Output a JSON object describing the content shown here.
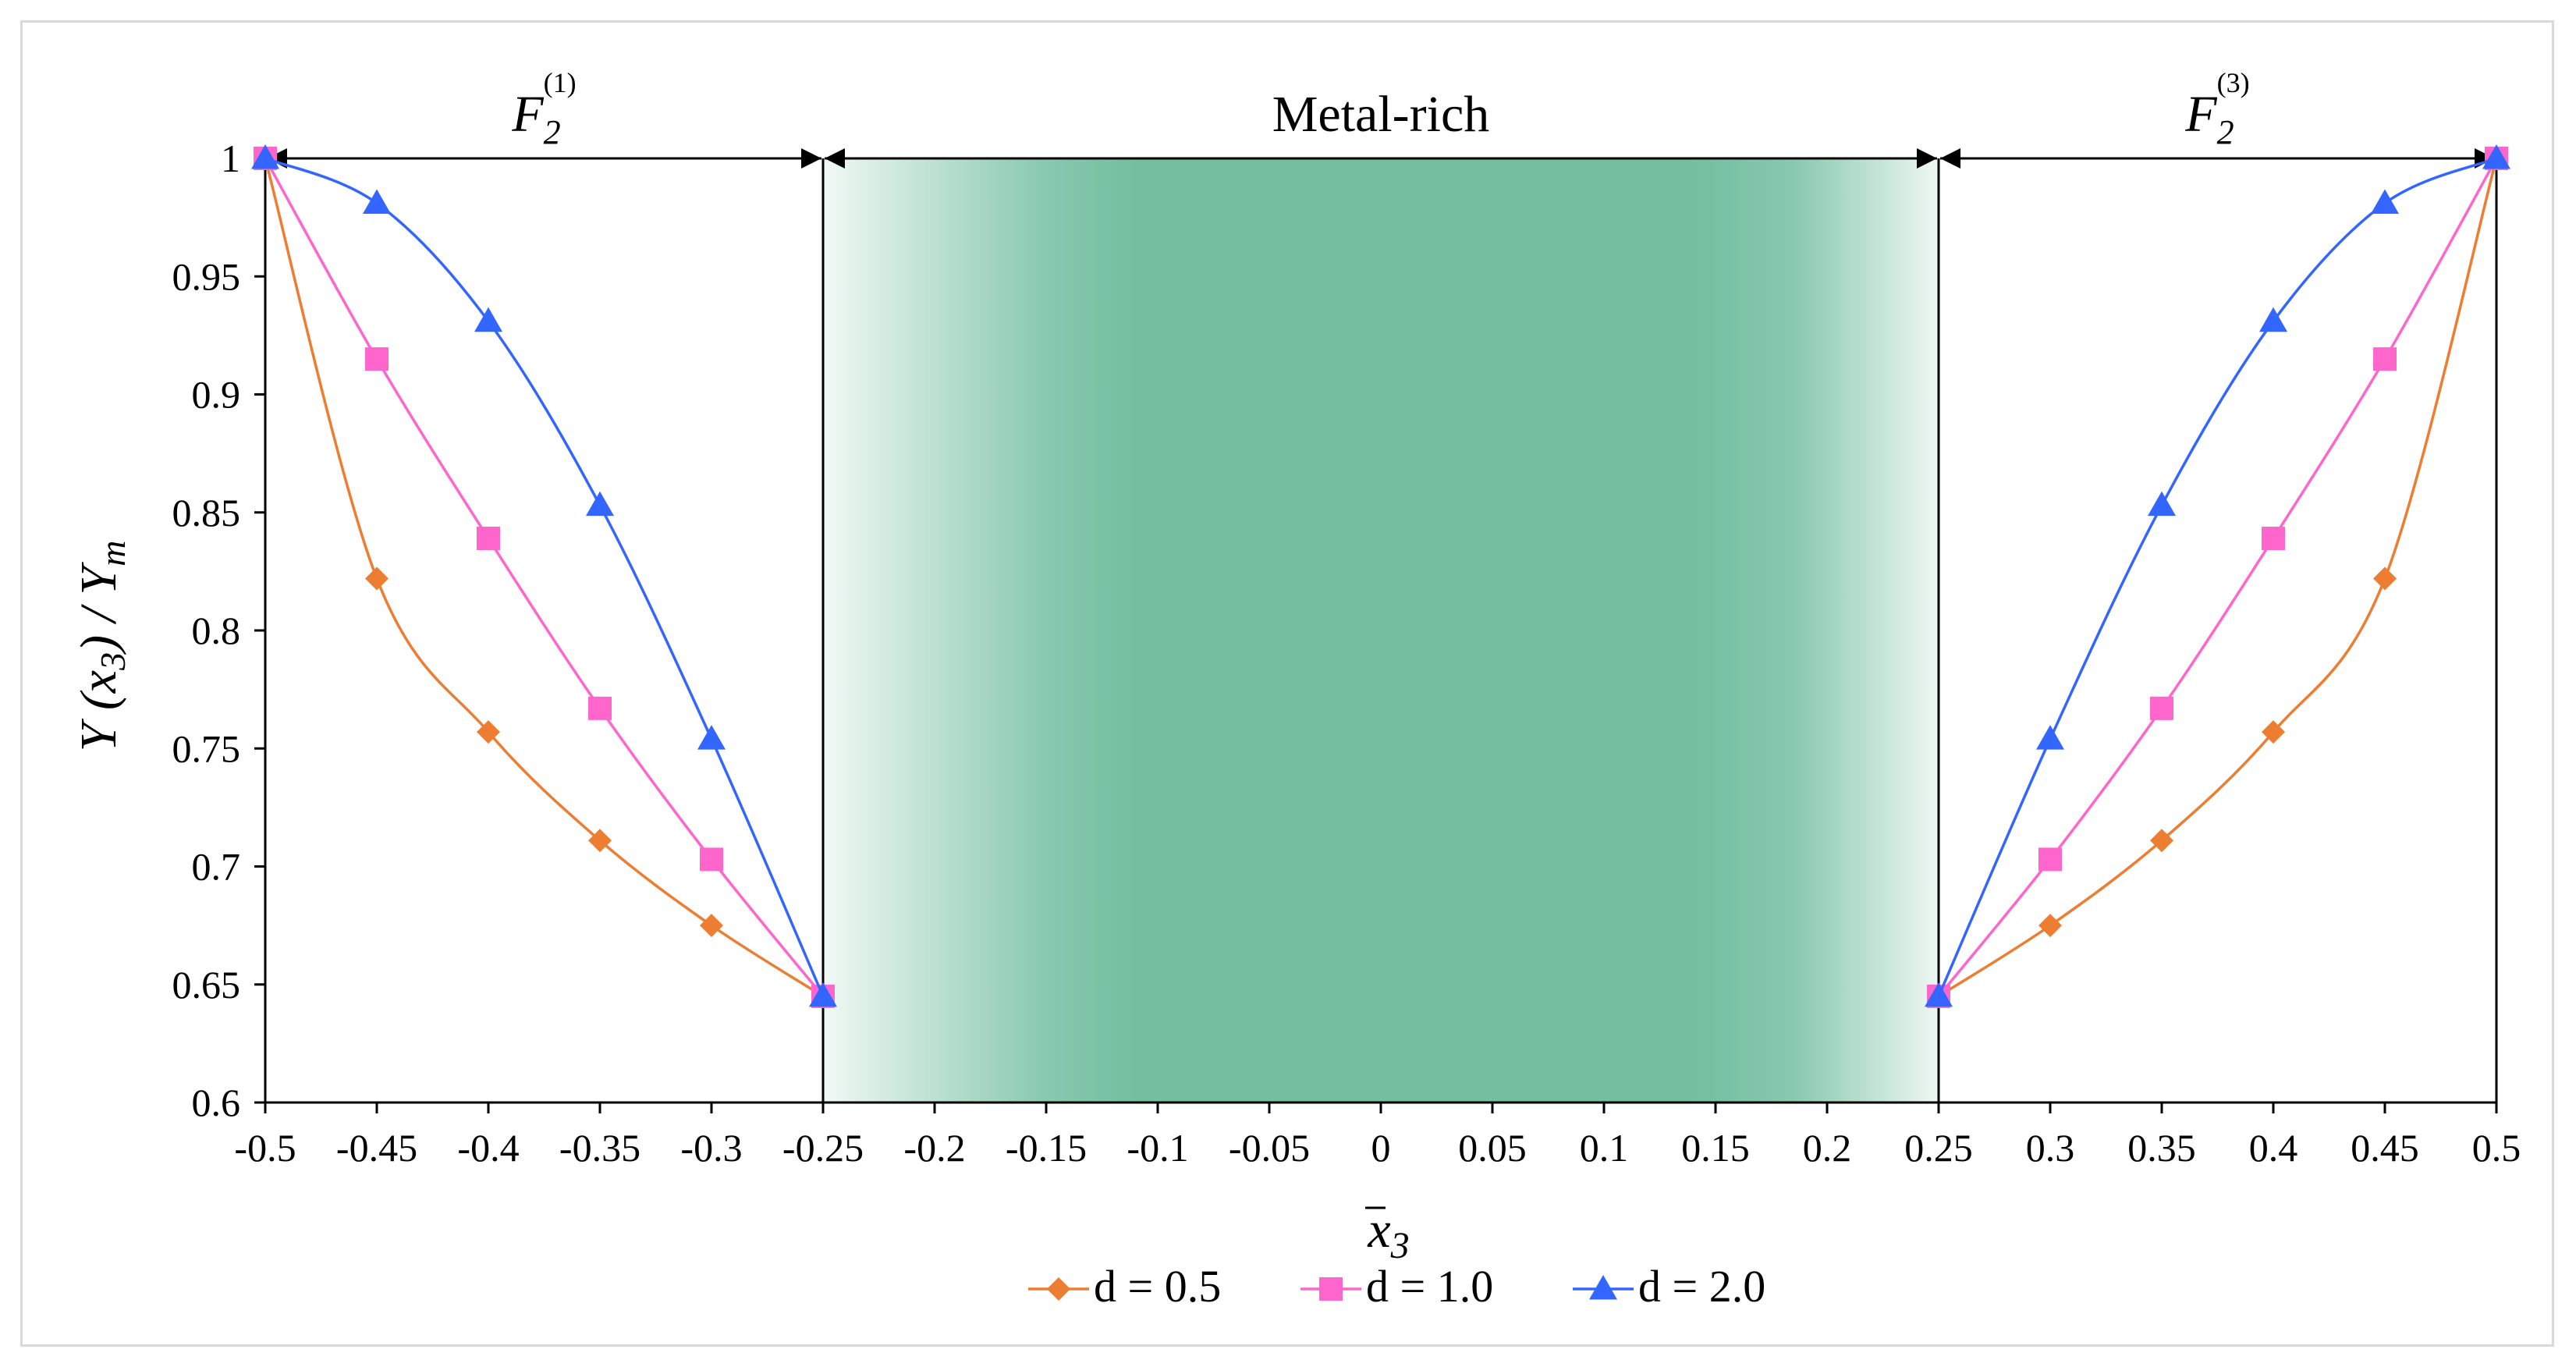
{
  "chart_data": {
    "type": "line",
    "title": "",
    "xlabel_base": "x",
    "xlabel_sub": "3",
    "ylabel": {
      "part1": "Y (",
      "var": "x",
      "sub": "3",
      "part2": ") / Y",
      "sub2": "m"
    },
    "xlim": [
      -0.5,
      0.5
    ],
    "ylim": [
      0.6,
      1.0
    ],
    "x_ticks": [
      -0.5,
      -0.45,
      -0.4,
      -0.35,
      -0.3,
      -0.25,
      -0.2,
      -0.15,
      -0.1,
      -0.05,
      0,
      0.05,
      0.1,
      0.15,
      0.2,
      0.25,
      0.3,
      0.35,
      0.4,
      0.45,
      0.5
    ],
    "x_tick_labels": [
      "-0.5",
      "-0.45",
      "-0.4",
      "-0.35",
      "-0.3",
      "-0.25",
      "-0.2",
      "-0.15",
      "-0.1",
      "-0.05",
      "0",
      "0.05",
      "0.1",
      "0.15",
      "0.2",
      "0.25",
      "0.3",
      "0.35",
      "0.4",
      "0.45",
      "0.5"
    ],
    "y_ticks": [
      0.6,
      0.65,
      0.7,
      0.75,
      0.8,
      0.85,
      0.9,
      0.95,
      1.0
    ],
    "y_tick_labels": [
      "0.6",
      "0.65",
      "0.7",
      "0.75",
      "0.8",
      "0.85",
      "0.9",
      "0.95",
      "1"
    ],
    "regions": [
      {
        "name": "F2(1)",
        "base": "F",
        "sub": "2",
        "sup": "(1)",
        "x_range": [
          -0.5,
          -0.25
        ]
      },
      {
        "name": "Metal-rich",
        "label": "Metal-rich",
        "x_range": [
          -0.25,
          0.25
        ],
        "fill": "#73bfa0"
      },
      {
        "name": "F2(3)",
        "base": "F",
        "sub": "2",
        "sup": "(3)",
        "x_range": [
          0.25,
          0.5
        ]
      }
    ],
    "series": [
      {
        "name": "d = 0.5",
        "color": "#ed7d31",
        "marker": "diamond",
        "left": {
          "x": [
            -0.5,
            -0.45,
            -0.4,
            -0.35,
            -0.3,
            -0.25
          ],
          "y": [
            1.0,
            0.822,
            0.757,
            0.711,
            0.675,
            0.645
          ]
        },
        "right": {
          "x": [
            0.25,
            0.3,
            0.35,
            0.4,
            0.45,
            0.5
          ],
          "y": [
            0.645,
            0.675,
            0.711,
            0.757,
            0.822,
            1.0
          ]
        }
      },
      {
        "name": "d = 1.0",
        "color": "#ff66cc",
        "marker": "square",
        "left": {
          "x": [
            -0.5,
            -0.45,
            -0.4,
            -0.35,
            -0.3,
            -0.25
          ],
          "y": [
            1.0,
            0.915,
            0.839,
            0.767,
            0.703,
            0.645
          ]
        },
        "right": {
          "x": [
            0.25,
            0.3,
            0.35,
            0.4,
            0.45,
            0.5
          ],
          "y": [
            0.645,
            0.703,
            0.767,
            0.839,
            0.915,
            1.0
          ]
        }
      },
      {
        "name": "d = 2.0",
        "color": "#3366ff",
        "marker": "triangle",
        "left": {
          "x": [
            -0.5,
            -0.45,
            -0.4,
            -0.35,
            -0.3,
            -0.25
          ],
          "y": [
            1.0,
            0.981,
            0.931,
            0.853,
            0.754,
            0.645
          ]
        },
        "right": {
          "x": [
            0.25,
            0.3,
            0.35,
            0.4,
            0.45,
            0.5
          ],
          "y": [
            0.645,
            0.754,
            0.853,
            0.931,
            0.981,
            1.0
          ]
        }
      }
    ],
    "legend_position": "bottom-center"
  }
}
